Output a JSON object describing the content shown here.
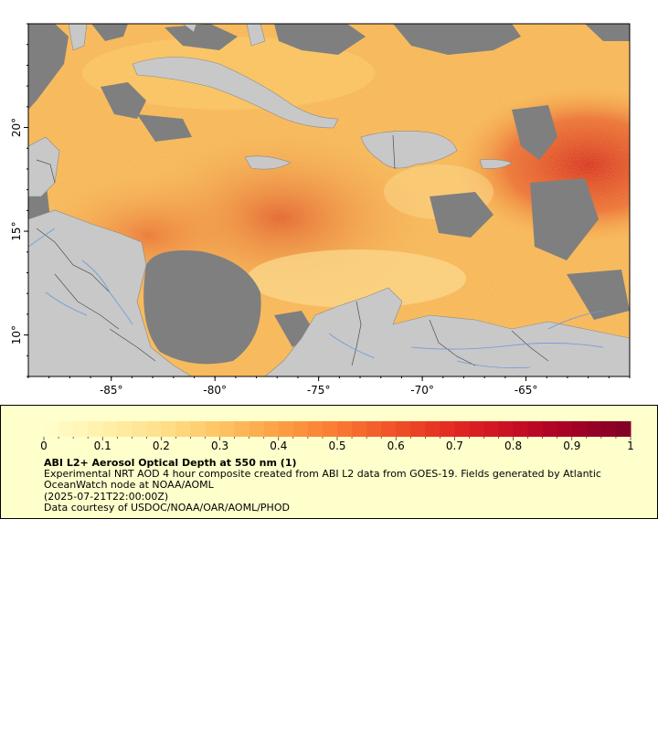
{
  "map": {
    "lon_range": [
      -89,
      -60
    ],
    "lat_range": [
      8,
      25
    ],
    "x_ticks": [
      {
        "value": -85,
        "label": "-85°"
      },
      {
        "value": -80,
        "label": "-80°"
      },
      {
        "value": -75,
        "label": "-75°"
      },
      {
        "value": -70,
        "label": "-70°"
      },
      {
        "value": -65,
        "label": "-65°"
      }
    ],
    "y_ticks": [
      {
        "value": 20,
        "label": "20°"
      },
      {
        "value": 15,
        "label": "15°"
      },
      {
        "value": 10,
        "label": "10°"
      }
    ],
    "colors": {
      "land": "#c8c8c8",
      "no_data": "#7f7f7f",
      "border": "#6a6a6a",
      "river": "#6b9bd8"
    }
  },
  "legend": {
    "colorbar_labels": [
      "0",
      "0.1",
      "0.2",
      "0.3",
      "0.4",
      "0.5",
      "0.6",
      "0.7",
      "0.8",
      "0.9",
      "1"
    ],
    "colorbar_range": [
      0,
      1
    ],
    "title": "ABI L2+ Aerosol Optical Depth at 550 nm (1)",
    "description": "Experimental NRT AOD 4 hour composite created from ABI L2 data from GOES-19. Fields generated by Atlantic OceanWatch node at NOAA/AOML",
    "timestamp": "(2025-07-21T22:00:00Z)",
    "credit": "Data courtesy of USDOC/NOAA/OAR/AOML/PHOD"
  }
}
